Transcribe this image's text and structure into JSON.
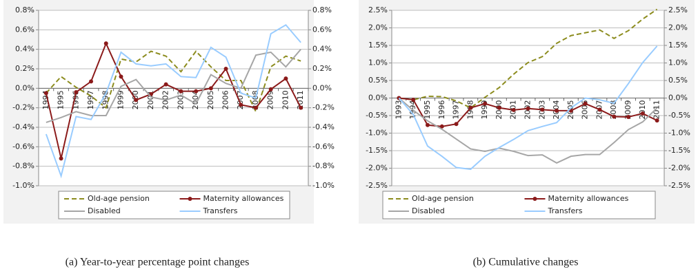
{
  "chart_data": [
    {
      "type": "line",
      "caption": "(a) Year-to-year percentage point changes",
      "categories": [
        "1994",
        "1995",
        "1996",
        "1997",
        "1998",
        "1999",
        "2000",
        "2001",
        "2002",
        "2003",
        "2004",
        "2005",
        "2006",
        "2007",
        "2008",
        "2009",
        "2010",
        "2011"
      ],
      "series": [
        {
          "name": "Old-age pension",
          "color": "#8c8c1e",
          "dashed": true,
          "values": [
            -0.05,
            0.12,
            0.01,
            -0.08,
            -0.2,
            0.3,
            0.27,
            0.38,
            0.33,
            0.17,
            0.38,
            0.22,
            0.08,
            0.08,
            -0.24,
            0.22,
            0.33,
            0.28
          ]
        },
        {
          "name": "Maternity allowances",
          "color": "#8b1a1a",
          "marker": true,
          "values": [
            -0.05,
            -0.72,
            -0.04,
            0.07,
            0.46,
            0.12,
            -0.12,
            -0.06,
            0.04,
            -0.03,
            -0.03,
            0.0,
            0.2,
            -0.17,
            -0.2,
            -0.01,
            0.1,
            -0.2
          ]
        },
        {
          "name": "Disabled",
          "color": "#a6a6a6",
          "values": [
            -0.35,
            -0.3,
            -0.24,
            -0.28,
            -0.28,
            0.02,
            0.09,
            -0.09,
            -0.12,
            -0.07,
            -0.16,
            0.14,
            0.05,
            0.0,
            0.34,
            0.37,
            0.22,
            0.4
          ]
        },
        {
          "name": "Transfers",
          "color": "#99ccff",
          "values": [
            -0.47,
            -0.9,
            -0.29,
            -0.32,
            -0.05,
            0.37,
            0.25,
            0.23,
            0.25,
            0.12,
            0.11,
            0.42,
            0.32,
            -0.05,
            -0.1,
            0.56,
            0.65,
            0.47
          ]
        }
      ],
      "ylim": [
        -1.0,
        0.8
      ],
      "yticks": [
        {
          "value": -1.0,
          "label": "-1.0%"
        },
        {
          "value": -0.8,
          "label": "-0.8%"
        },
        {
          "value": -0.6,
          "label": "-0.6%"
        },
        {
          "value": -0.4,
          "label": "-0.4%"
        },
        {
          "value": -0.2,
          "label": "-0.2%"
        },
        {
          "value": 0.0,
          "label": "0.0%"
        },
        {
          "value": 0.2,
          "label": "0.2%"
        },
        {
          "value": 0.4,
          "label": "0.4%"
        },
        {
          "value": 0.6,
          "label": "0.6%"
        },
        {
          "value": 0.8,
          "label": "0.8%"
        }
      ],
      "y2lim": [
        -1.0,
        0.8
      ],
      "y2ticks": [
        {
          "value": -1.0,
          "label": "-1.0%"
        },
        {
          "value": -0.8,
          "label": "-0.8%"
        },
        {
          "value": -0.6,
          "label": "-0.6%"
        },
        {
          "value": -0.4,
          "label": "-0.4%"
        },
        {
          "value": -0.2,
          "label": "-0.2%"
        },
        {
          "value": 0.0,
          "label": "0.0%"
        },
        {
          "value": 0.2,
          "label": "0.2%"
        },
        {
          "value": 0.4,
          "label": "0.4%"
        },
        {
          "value": 0.6,
          "label": "0.6%"
        },
        {
          "value": 0.8,
          "label": "0.8%"
        }
      ],
      "grid": true
    },
    {
      "type": "line",
      "caption": "(b) Cumulative changes",
      "categories": [
        "1993",
        "1994",
        "1995",
        "1996",
        "1997",
        "1998",
        "1999",
        "2000",
        "2001",
        "2002",
        "2003",
        "2004",
        "2005",
        "2006",
        "2007",
        "2008",
        "2009",
        "2010",
        "2011"
      ],
      "series": [
        {
          "name": "Old-age pension",
          "color": "#8c8c1e",
          "dashed": true,
          "values": [
            0,
            -0.05,
            0.05,
            0.04,
            -0.08,
            -0.28,
            0.02,
            0.3,
            0.68,
            1.01,
            1.18,
            1.56,
            1.78,
            1.86,
            1.94,
            1.7,
            1.92,
            2.25,
            2.53
          ]
        },
        {
          "name": "Maternity allowances",
          "color": "#8b1a1a",
          "marker": true,
          "values": [
            0,
            -0.05,
            -0.77,
            -0.81,
            -0.74,
            -0.28,
            -0.16,
            -0.28,
            -0.34,
            -0.3,
            -0.33,
            -0.36,
            -0.36,
            -0.16,
            -0.33,
            -0.53,
            -0.54,
            -0.44,
            -0.64
          ]
        },
        {
          "name": "Disabled",
          "color": "#a6a6a6",
          "values": [
            0,
            -0.35,
            -0.65,
            -0.89,
            -1.17,
            -1.45,
            -1.52,
            -1.43,
            -1.52,
            -1.64,
            -1.62,
            -1.85,
            -1.66,
            -1.61,
            -1.61,
            -1.27,
            -0.9,
            -0.68,
            -0.28
          ]
        },
        {
          "name": "Transfers",
          "color": "#99ccff",
          "values": [
            0,
            -0.47,
            -1.37,
            -1.66,
            -1.98,
            -2.03,
            -1.66,
            -1.41,
            -1.18,
            -0.93,
            -0.81,
            -0.7,
            -0.28,
            0.0,
            -0.05,
            -0.15,
            0.41,
            1.01,
            1.48
          ]
        }
      ],
      "ylim": [
        -2.5,
        2.5
      ],
      "yticks": [
        {
          "value": -2.5,
          "label": "-2.5%"
        },
        {
          "value": -2.0,
          "label": "-2.0%"
        },
        {
          "value": -1.5,
          "label": "-1.5%"
        },
        {
          "value": -1.0,
          "label": "-1.0%"
        },
        {
          "value": -0.5,
          "label": "-0.5%"
        },
        {
          "value": 0.0,
          "label": "0.0%"
        },
        {
          "value": 0.5,
          "label": "0.5%"
        },
        {
          "value": 1.0,
          "label": "1.0%"
        },
        {
          "value": 1.5,
          "label": "1.5%"
        },
        {
          "value": 2.0,
          "label": "2.0%"
        },
        {
          "value": 2.5,
          "label": "2.5%"
        }
      ],
      "y2lim": [
        -2.5,
        2.5
      ],
      "y2ticks": [
        {
          "value": -2.5,
          "label": "-2.5%"
        },
        {
          "value": -2.0,
          "label": "-2.0%"
        },
        {
          "value": -1.5,
          "label": "-1.5%"
        },
        {
          "value": -1.0,
          "label": "-1.0%"
        },
        {
          "value": -0.5,
          "label": "-0.5%"
        },
        {
          "value": 0.0,
          "label": "0.0%"
        },
        {
          "value": 0.5,
          "label": "0.5%"
        },
        {
          "value": 1.0,
          "label": "1.0%"
        },
        {
          "value": 1.5,
          "label": "1.5%"
        },
        {
          "value": 2.0,
          "label": "2.0%"
        },
        {
          "value": 2.5,
          "label": "2.5%"
        }
      ],
      "grid": true
    }
  ]
}
